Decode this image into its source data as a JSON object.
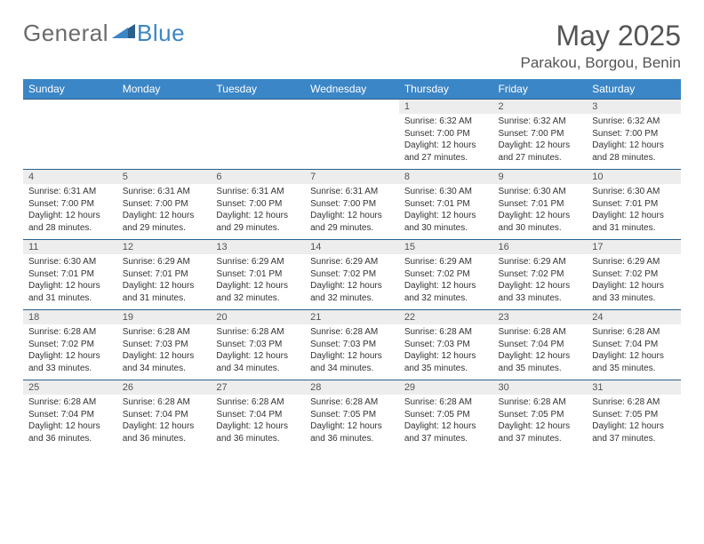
{
  "brand": {
    "part1": "General",
    "part2": "Blue"
  },
  "title": "May 2025",
  "location": "Parakou, Borgou, Benin",
  "colors": {
    "accent": "#3b86c6",
    "grayText": "#6b6b6b",
    "headerRule": "#2a5f8a",
    "dayBg": "#ededed"
  },
  "dayHeaders": [
    "Sunday",
    "Monday",
    "Tuesday",
    "Wednesday",
    "Thursday",
    "Friday",
    "Saturday"
  ],
  "weeks": [
    [
      null,
      null,
      null,
      null,
      {
        "n": "1",
        "sr": "6:32 AM",
        "ss": "7:00 PM",
        "dl1": "12 hours",
        "dl2": "and 27 minutes."
      },
      {
        "n": "2",
        "sr": "6:32 AM",
        "ss": "7:00 PM",
        "dl1": "12 hours",
        "dl2": "and 27 minutes."
      },
      {
        "n": "3",
        "sr": "6:32 AM",
        "ss": "7:00 PM",
        "dl1": "12 hours",
        "dl2": "and 28 minutes."
      }
    ],
    [
      {
        "n": "4",
        "sr": "6:31 AM",
        "ss": "7:00 PM",
        "dl1": "12 hours",
        "dl2": "and 28 minutes."
      },
      {
        "n": "5",
        "sr": "6:31 AM",
        "ss": "7:00 PM",
        "dl1": "12 hours",
        "dl2": "and 29 minutes."
      },
      {
        "n": "6",
        "sr": "6:31 AM",
        "ss": "7:00 PM",
        "dl1": "12 hours",
        "dl2": "and 29 minutes."
      },
      {
        "n": "7",
        "sr": "6:31 AM",
        "ss": "7:00 PM",
        "dl1": "12 hours",
        "dl2": "and 29 minutes."
      },
      {
        "n": "8",
        "sr": "6:30 AM",
        "ss": "7:01 PM",
        "dl1": "12 hours",
        "dl2": "and 30 minutes."
      },
      {
        "n": "9",
        "sr": "6:30 AM",
        "ss": "7:01 PM",
        "dl1": "12 hours",
        "dl2": "and 30 minutes."
      },
      {
        "n": "10",
        "sr": "6:30 AM",
        "ss": "7:01 PM",
        "dl1": "12 hours",
        "dl2": "and 31 minutes."
      }
    ],
    [
      {
        "n": "11",
        "sr": "6:30 AM",
        "ss": "7:01 PM",
        "dl1": "12 hours",
        "dl2": "and 31 minutes."
      },
      {
        "n": "12",
        "sr": "6:29 AM",
        "ss": "7:01 PM",
        "dl1": "12 hours",
        "dl2": "and 31 minutes."
      },
      {
        "n": "13",
        "sr": "6:29 AM",
        "ss": "7:01 PM",
        "dl1": "12 hours",
        "dl2": "and 32 minutes."
      },
      {
        "n": "14",
        "sr": "6:29 AM",
        "ss": "7:02 PM",
        "dl1": "12 hours",
        "dl2": "and 32 minutes."
      },
      {
        "n": "15",
        "sr": "6:29 AM",
        "ss": "7:02 PM",
        "dl1": "12 hours",
        "dl2": "and 32 minutes."
      },
      {
        "n": "16",
        "sr": "6:29 AM",
        "ss": "7:02 PM",
        "dl1": "12 hours",
        "dl2": "and 33 minutes."
      },
      {
        "n": "17",
        "sr": "6:29 AM",
        "ss": "7:02 PM",
        "dl1": "12 hours",
        "dl2": "and 33 minutes."
      }
    ],
    [
      {
        "n": "18",
        "sr": "6:28 AM",
        "ss": "7:02 PM",
        "dl1": "12 hours",
        "dl2": "and 33 minutes."
      },
      {
        "n": "19",
        "sr": "6:28 AM",
        "ss": "7:03 PM",
        "dl1": "12 hours",
        "dl2": "and 34 minutes."
      },
      {
        "n": "20",
        "sr": "6:28 AM",
        "ss": "7:03 PM",
        "dl1": "12 hours",
        "dl2": "and 34 minutes."
      },
      {
        "n": "21",
        "sr": "6:28 AM",
        "ss": "7:03 PM",
        "dl1": "12 hours",
        "dl2": "and 34 minutes."
      },
      {
        "n": "22",
        "sr": "6:28 AM",
        "ss": "7:03 PM",
        "dl1": "12 hours",
        "dl2": "and 35 minutes."
      },
      {
        "n": "23",
        "sr": "6:28 AM",
        "ss": "7:04 PM",
        "dl1": "12 hours",
        "dl2": "and 35 minutes."
      },
      {
        "n": "24",
        "sr": "6:28 AM",
        "ss": "7:04 PM",
        "dl1": "12 hours",
        "dl2": "and 35 minutes."
      }
    ],
    [
      {
        "n": "25",
        "sr": "6:28 AM",
        "ss": "7:04 PM",
        "dl1": "12 hours",
        "dl2": "and 36 minutes."
      },
      {
        "n": "26",
        "sr": "6:28 AM",
        "ss": "7:04 PM",
        "dl1": "12 hours",
        "dl2": "and 36 minutes."
      },
      {
        "n": "27",
        "sr": "6:28 AM",
        "ss": "7:04 PM",
        "dl1": "12 hours",
        "dl2": "and 36 minutes."
      },
      {
        "n": "28",
        "sr": "6:28 AM",
        "ss": "7:05 PM",
        "dl1": "12 hours",
        "dl2": "and 36 minutes."
      },
      {
        "n": "29",
        "sr": "6:28 AM",
        "ss": "7:05 PM",
        "dl1": "12 hours",
        "dl2": "and 37 minutes."
      },
      {
        "n": "30",
        "sr": "6:28 AM",
        "ss": "7:05 PM",
        "dl1": "12 hours",
        "dl2": "and 37 minutes."
      },
      {
        "n": "31",
        "sr": "6:28 AM",
        "ss": "7:05 PM",
        "dl1": "12 hours",
        "dl2": "and 37 minutes."
      }
    ]
  ],
  "labels": {
    "sunrise": "Sunrise: ",
    "sunset": "Sunset: ",
    "daylight": "Daylight: "
  }
}
